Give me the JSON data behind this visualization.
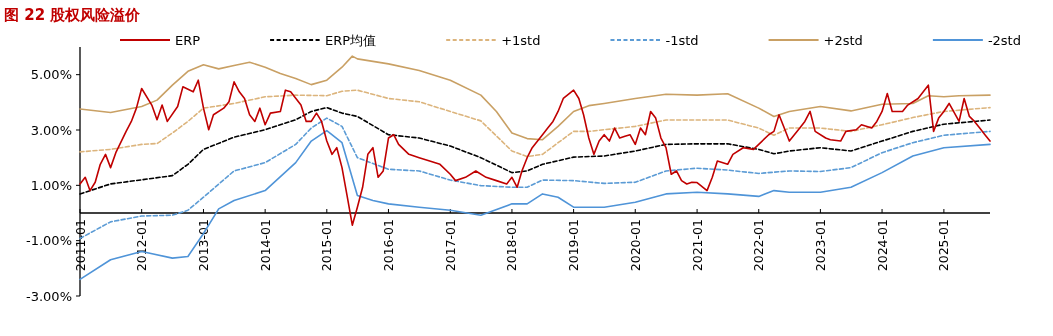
{
  "chart_data": {
    "type": "line",
    "title": "图 22 股权风险溢价",
    "xlim": [
      "2011-01",
      "2025-10"
    ],
    "xticks": [
      "2011-01",
      "2012-01",
      "2013-01",
      "2014-01",
      "2015-01",
      "2016-01",
      "2017-01",
      "2018-01",
      "2019-01",
      "2020-01",
      "2021-01",
      "2022-01",
      "2023-01",
      "2024-01",
      "2025-01"
    ],
    "ylim": [
      -3,
      6
    ],
    "yticks": [
      {
        "value": 5,
        "label": "5.00%"
      },
      {
        "value": 3,
        "label": "3.00%"
      },
      {
        "value": 1,
        "label": "1.00%"
      },
      {
        "value": -1,
        "label": "-1.00%"
      },
      {
        "value": -3,
        "label": "-3.00%"
      }
    ],
    "grid": false,
    "legend": "top",
    "marker": "none",
    "series": [
      {
        "name": "ERP",
        "color": "#c00000",
        "line_style": "solid",
        "x": [
          "2011-01",
          "2011-02",
          "2011-03",
          "2011-04",
          "2011-05",
          "2011-06",
          "2011-07",
          "2011-08",
          "2011-10",
          "2011-11",
          "2011-12",
          "2012-01",
          "2012-03",
          "2012-04",
          "2012-05",
          "2012-06",
          "2012-08",
          "2012-09",
          "2012-11",
          "2012-12",
          "2013-01",
          "2013-02",
          "2013-03",
          "2013-05",
          "2013-06",
          "2013-07",
          "2013-08",
          "2013-09",
          "2013-10",
          "2013-11",
          "2013-12",
          "2014-01",
          "2014-02",
          "2014-04",
          "2014-05",
          "2014-06",
          "2014-08",
          "2014-09",
          "2014-10",
          "2014-11",
          "2014-12",
          "2015-01",
          "2015-02",
          "2015-03",
          "2015-04",
          "2015-05",
          "2015-06",
          "2015-07",
          "2015-08",
          "2015-09",
          "2015-10",
          "2015-11",
          "2015-12",
          "2016-01",
          "2016-02",
          "2016-03",
          "2016-05",
          "2016-07",
          "2016-09",
          "2016-11",
          "2017-01",
          "2017-02",
          "2017-04",
          "2017-06",
          "2017-08",
          "2017-10",
          "2017-12",
          "2018-01",
          "2018-02",
          "2018-03",
          "2018-04",
          "2018-05",
          "2018-07",
          "2018-08",
          "2018-09",
          "2018-10",
          "2018-11",
          "2019-01",
          "2019-02",
          "2019-03",
          "2019-04",
          "2019-05",
          "2019-06",
          "2019-07",
          "2019-08",
          "2019-09",
          "2019-10",
          "2019-11",
          "2019-12",
          "2020-01",
          "2020-02",
          "2020-03",
          "2020-04",
          "2020-05",
          "2020-06",
          "2020-07",
          "2020-08",
          "2020-09",
          "2020-10",
          "2020-11",
          "2020-12",
          "2021-01",
          "2021-03",
          "2021-04",
          "2021-05",
          "2021-07",
          "2021-08",
          "2021-10",
          "2021-12",
          "2022-01",
          "2022-03",
          "2022-04",
          "2022-05",
          "2022-06",
          "2022-07",
          "2022-09",
          "2022-10",
          "2022-11",
          "2022-12",
          "2023-02",
          "2023-03",
          "2023-05",
          "2023-06",
          "2023-08",
          "2023-09",
          "2023-11",
          "2023-12",
          "2024-01",
          "2024-02",
          "2024-03",
          "2024-05",
          "2024-06",
          "2024-08",
          "2024-09",
          "2024-10",
          "2024-11",
          "2024-12",
          "2025-01",
          "2025-02",
          "2025-04",
          "2025-05",
          "2025-06",
          "2025-07",
          "2025-08",
          "2025-09",
          "2025-10"
        ],
        "values": [
          1.05,
          1.29,
          0.81,
          1.11,
          1.76,
          2.12,
          1.64,
          2.18,
          2.95,
          3.31,
          3.79,
          4.5,
          3.9,
          3.37,
          3.9,
          3.31,
          3.85,
          4.56,
          4.38,
          4.8,
          3.79,
          3.01,
          3.55,
          3.79,
          4.02,
          4.74,
          4.38,
          4.14,
          3.55,
          3.31,
          3.79,
          3.19,
          3.61,
          3.67,
          4.44,
          4.38,
          3.9,
          3.31,
          3.31,
          3.61,
          3.31,
          2.6,
          2.12,
          2.36,
          1.64,
          0.63,
          -0.44,
          0.21,
          0.93,
          2.12,
          2.36,
          1.29,
          1.52,
          2.71,
          2.83,
          2.48,
          2.12,
          2.0,
          1.88,
          1.76,
          1.4,
          1.17,
          1.29,
          1.52,
          1.29,
          1.17,
          1.05,
          1.29,
          0.93,
          1.52,
          2.0,
          2.36,
          2.83,
          3.07,
          3.31,
          3.67,
          4.14,
          4.44,
          4.14,
          3.55,
          2.71,
          2.12,
          2.6,
          2.83,
          2.6,
          3.07,
          2.71,
          2.77,
          2.83,
          2.48,
          3.07,
          2.83,
          3.67,
          3.43,
          2.71,
          2.36,
          1.4,
          1.52,
          1.17,
          1.05,
          1.11,
          1.1,
          0.81,
          1.29,
          1.88,
          1.76,
          2.12,
          2.36,
          2.3,
          2.48,
          2.83,
          2.95,
          3.55,
          3.07,
          2.6,
          3.07,
          3.31,
          3.67,
          2.95,
          2.71,
          2.65,
          2.6,
          2.95,
          3.01,
          3.19,
          3.07,
          3.31,
          3.67,
          4.32,
          3.67,
          3.67,
          3.9,
          4.14,
          4.38,
          4.62,
          2.95,
          3.43,
          3.67,
          3.96,
          3.31,
          4.14,
          3.49,
          3.31,
          3.07,
          2.83,
          2.6
        ]
      },
      {
        "name": "ERP均值",
        "color": "#000000",
        "line_style": "dashed",
        "x": [
          "2011-01",
          "2011-07",
          "2012-01",
          "2012-07",
          "2012-10",
          "2013-01",
          "2013-07",
          "2014-01",
          "2014-07",
          "2014-10",
          "2015-01",
          "2015-04",
          "2015-07",
          "2016-01",
          "2016-07",
          "2017-01",
          "2017-07",
          "2018-01",
          "2018-04",
          "2018-07",
          "2019-01",
          "2019-07",
          "2020-01",
          "2020-07",
          "2021-01",
          "2021-07",
          "2022-01",
          "2022-04",
          "2022-07",
          "2023-01",
          "2023-07",
          "2024-01",
          "2024-07",
          "2025-01",
          "2025-10"
        ],
        "values": [
          0.69,
          1.05,
          1.2,
          1.35,
          1.76,
          2.3,
          2.74,
          3.01,
          3.37,
          3.67,
          3.81,
          3.61,
          3.49,
          2.83,
          2.71,
          2.42,
          2.0,
          1.46,
          1.52,
          1.76,
          2.02,
          2.06,
          2.24,
          2.48,
          2.5,
          2.5,
          2.3,
          2.14,
          2.24,
          2.36,
          2.24,
          2.6,
          2.95,
          3.21,
          3.36
        ]
      },
      {
        "name": "+1std",
        "color": "#dcb47c",
        "line_style": "dashed",
        "x": [
          "2011-01",
          "2011-07",
          "2012-01",
          "2012-04",
          "2012-07",
          "2012-10",
          "2013-01",
          "2013-07",
          "2014-01",
          "2014-07",
          "2015-01",
          "2015-04",
          "2015-07",
          "2016-01",
          "2016-07",
          "2017-01",
          "2017-07",
          "2018-01",
          "2018-04",
          "2018-07",
          "2018-10",
          "2019-01",
          "2019-04",
          "2020-01",
          "2020-07",
          "2021-01",
          "2021-07",
          "2022-01",
          "2022-04",
          "2022-07",
          "2023-01",
          "2023-07",
          "2024-01",
          "2024-07",
          "2025-01",
          "2025-10"
        ],
        "values": [
          2.21,
          2.3,
          2.48,
          2.51,
          2.89,
          3.31,
          3.79,
          3.96,
          4.2,
          4.26,
          4.24,
          4.4,
          4.44,
          4.14,
          4.02,
          3.67,
          3.33,
          2.24,
          2.04,
          2.12,
          2.54,
          2.95,
          2.95,
          3.13,
          3.36,
          3.36,
          3.36,
          3.07,
          2.81,
          3.07,
          3.07,
          2.95,
          3.19,
          3.45,
          3.67,
          3.81
        ]
      },
      {
        "name": "-1std",
        "color": "#5b9bd5",
        "line_style": "dashed",
        "x": [
          "2011-01",
          "2011-07",
          "2012-01",
          "2012-07",
          "2012-10",
          "2013-01",
          "2013-07",
          "2014-01",
          "2014-07",
          "2014-10",
          "2015-01",
          "2015-04",
          "2015-07",
          "2016-01",
          "2016-07",
          "2017-01",
          "2017-07",
          "2018-01",
          "2018-04",
          "2018-07",
          "2019-01",
          "2019-07",
          "2020-01",
          "2020-07",
          "2021-01",
          "2021-07",
          "2022-01",
          "2022-07",
          "2023-01",
          "2023-07",
          "2024-01",
          "2024-07",
          "2025-01",
          "2025-10"
        ],
        "values": [
          -0.92,
          -0.32,
          -0.11,
          -0.08,
          0.1,
          0.57,
          1.52,
          1.82,
          2.48,
          3.07,
          3.43,
          3.13,
          2.0,
          1.58,
          1.52,
          1.19,
          0.99,
          0.93,
          0.93,
          1.19,
          1.17,
          1.07,
          1.11,
          1.52,
          1.62,
          1.55,
          1.43,
          1.52,
          1.5,
          1.64,
          2.18,
          2.54,
          2.81,
          2.95
        ]
      },
      {
        "name": "+2std",
        "color": "#c9a064",
        "line_style": "solid",
        "x": [
          "2011-01",
          "2011-07",
          "2012-01",
          "2012-04",
          "2012-07",
          "2012-10",
          "2013-01",
          "2013-04",
          "2013-07",
          "2013-10",
          "2014-01",
          "2014-04",
          "2014-07",
          "2014-10",
          "2015-01",
          "2015-04",
          "2015-06",
          "2015-07",
          "2016-01",
          "2016-07",
          "2017-01",
          "2017-07",
          "2017-10",
          "2018-01",
          "2018-04",
          "2018-07",
          "2018-10",
          "2019-01",
          "2019-04",
          "2019-07",
          "2020-01",
          "2020-07",
          "2021-01",
          "2021-07",
          "2022-01",
          "2022-04",
          "2022-07",
          "2023-01",
          "2023-07",
          "2024-01",
          "2024-07",
          "2024-10",
          "2025-01",
          "2025-04",
          "2025-10"
        ],
        "values": [
          3.76,
          3.63,
          3.85,
          4.08,
          4.62,
          5.12,
          5.36,
          5.21,
          5.33,
          5.45,
          5.27,
          5.04,
          4.86,
          4.64,
          4.8,
          5.27,
          5.67,
          5.57,
          5.39,
          5.15,
          4.8,
          4.26,
          3.67,
          2.89,
          2.69,
          2.65,
          3.13,
          3.67,
          3.88,
          3.96,
          4.14,
          4.29,
          4.26,
          4.31,
          3.79,
          3.49,
          3.67,
          3.85,
          3.69,
          3.93,
          3.96,
          4.24,
          4.2,
          4.24,
          4.26
        ]
      },
      {
        "name": "-2std",
        "color": "#4f94d8",
        "line_style": "solid",
        "x": [
          "2011-01",
          "2011-07",
          "2012-01",
          "2012-07",
          "2012-10",
          "2013-01",
          "2013-04",
          "2013-07",
          "2014-01",
          "2014-07",
          "2014-10",
          "2015-01",
          "2015-04",
          "2015-07",
          "2015-10",
          "2016-01",
          "2016-07",
          "2017-01",
          "2017-07",
          "2018-01",
          "2018-04",
          "2018-07",
          "2018-10",
          "2019-01",
          "2019-07",
          "2020-01",
          "2020-07",
          "2021-01",
          "2021-07",
          "2022-01",
          "2022-04",
          "2022-07",
          "2023-01",
          "2023-07",
          "2024-01",
          "2024-07",
          "2025-01",
          "2025-10"
        ],
        "values": [
          -2.4,
          -1.69,
          -1.39,
          -1.63,
          -1.57,
          -0.74,
          0.15,
          0.45,
          0.81,
          1.82,
          2.6,
          2.98,
          2.54,
          0.63,
          0.45,
          0.33,
          0.21,
          0.1,
          -0.08,
          0.33,
          0.33,
          0.69,
          0.57,
          0.21,
          0.21,
          0.39,
          0.69,
          0.75,
          0.69,
          0.6,
          0.81,
          0.75,
          0.75,
          0.93,
          1.46,
          2.06,
          2.36,
          2.48
        ]
      }
    ]
  }
}
